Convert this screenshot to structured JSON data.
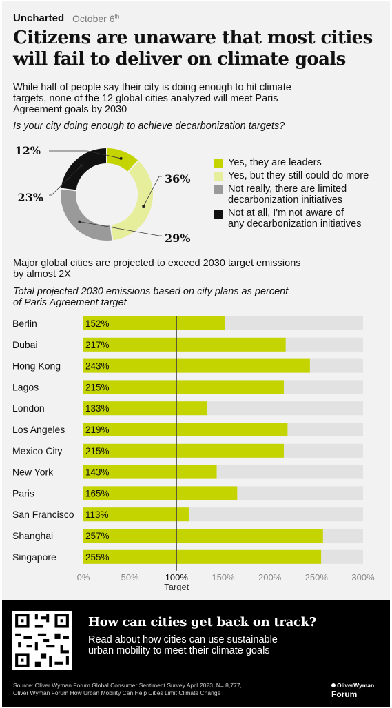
{
  "header": {
    "brand": "Uncharted",
    "date": "October 6",
    "date_suffix": "th"
  },
  "title_line1": "Citizens are unaware that most cities",
  "title_line2": "will fail to deliver on climate goals",
  "subtitle_line1": "While half of people say their city is doing enough to hit climate",
  "subtitle_line2": "targets, none of the 12 global cities analyzed will meet Paris",
  "subtitle_line3": "Agreement goals by 2030",
  "question": "Is your city doing enough to achieve decarbonization targets?",
  "section2": {
    "title_line1": "Major global cities are projected to exceed 2030 target emissions",
    "title_line2": "by almost 2X",
    "sub_line1": "Total projected 2030 emissions based on city plans as percent",
    "sub_line2": "of Paris Agreement target"
  },
  "chart_data": [
    {
      "type": "pie",
      "title": "Is your city doing enough to achieve decarbonization targets?",
      "slices": [
        {
          "label_line1": "Yes, they are leaders",
          "label_line2": "",
          "value": 12,
          "value_label": "12%",
          "color": "#c3d400"
        },
        {
          "label_line1": "Yes, but they still could do more",
          "label_line2": "",
          "value": 36,
          "value_label": "36%",
          "color": "#e6ee9c"
        },
        {
          "label_line1": "Not really, there are limited",
          "label_line2": "decarbonization initiatives",
          "value": 29,
          "value_label": "29%",
          "color": "#9a9a9a"
        },
        {
          "label_line1": "Not at all, I'm not aware of",
          "label_line2": "any decarbonization initiatives",
          "value": 23,
          "value_label": "23%",
          "color": "#111111"
        }
      ]
    },
    {
      "type": "bar",
      "orientation": "horizontal",
      "categories": [
        "Berlin",
        "Dubai",
        "Hong Kong",
        "Lagos",
        "London",
        "Los Angeles",
        "Mexico City",
        "New York",
        "Paris",
        "San Francisco",
        "Shanghai",
        "Singapore"
      ],
      "values": [
        152,
        217,
        243,
        215,
        133,
        219,
        215,
        143,
        165,
        113,
        257,
        255
      ],
      "value_labels": [
        "152%",
        "217%",
        "243%",
        "215%",
        "133%",
        "219%",
        "215%",
        "143%",
        "165%",
        "113%",
        "257%",
        "255%"
      ],
      "xlim": [
        0,
        300
      ],
      "ticks": [
        "0%",
        "50%",
        "100%",
        "150%",
        "200%",
        "250%",
        "300%"
      ],
      "target_value": 100,
      "target_label": "Target",
      "bar_color": "#c3d400",
      "track_color": "#e2e2e2"
    }
  ],
  "footer": {
    "cta_title": "How can cities get back on track?",
    "cta_line1": "Read about how cities can use sustainable",
    "cta_line2": "urban mobility to meet their climate goals",
    "source_line1": "Source: Oliver Wyman Forum Global Consumer Sentiment Survey April 2023, N= 8,777,",
    "source_line2": "Oliver Wyman Forum How Urban Mobility Can Help Cities Limit Climate Change",
    "logo_top": "OliverWyman",
    "logo_bottom": "Forum"
  }
}
